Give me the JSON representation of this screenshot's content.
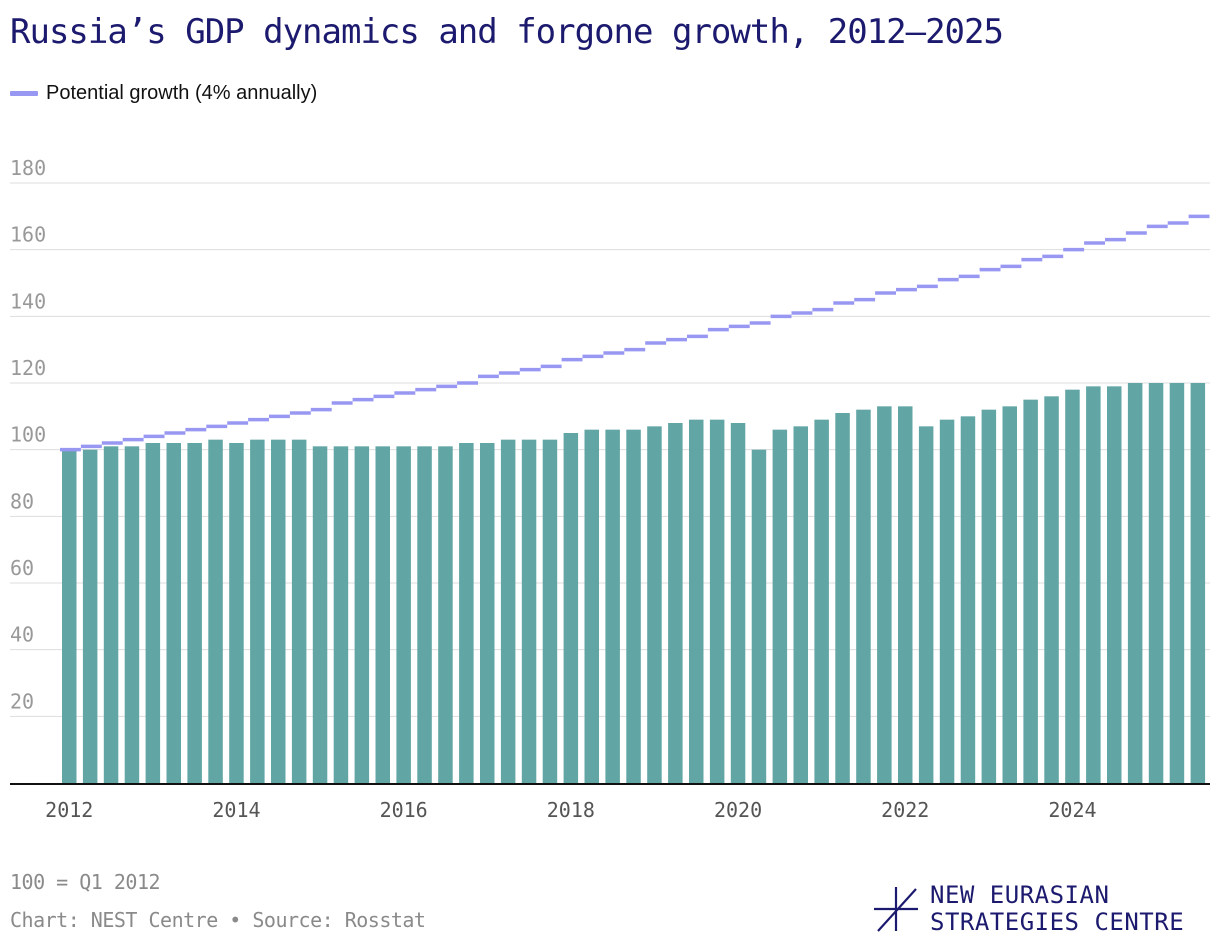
{
  "title": "Russia’s GDP dynamics and forgone growth, 2012–2025",
  "legend": {
    "potential_label": "Potential growth (4% annually)"
  },
  "footnotes": {
    "base": "100 = Q1 2012",
    "source": "Chart: NEST Centre • Source: Rosstat"
  },
  "logo": {
    "line1": "NEW EURASIAN",
    "line2": "STRATEGIES CENTRE"
  },
  "colors": {
    "bar": "#61a5a5",
    "potential": "#9898f2",
    "title": "#1c1a6e",
    "grid": "#dddddd",
    "axis": "#111111",
    "tick": "#999999"
  },
  "chart_data": {
    "type": "bar",
    "title": "Russia’s GDP dynamics and forgone growth, 2012–2025",
    "unit_note": "100 = Q1 2012",
    "xlabel": "",
    "ylabel": "",
    "ylim": [
      0,
      180
    ],
    "y_ticks": [
      20,
      40,
      60,
      80,
      100,
      120,
      140,
      160,
      180
    ],
    "x_tick_labels": [
      "2012",
      "2014",
      "2016",
      "2018",
      "2020",
      "2022",
      "2024"
    ],
    "categories": [
      "Q1 2012",
      "Q2 2012",
      "Q3 2012",
      "Q4 2012",
      "Q1 2013",
      "Q2 2013",
      "Q3 2013",
      "Q4 2013",
      "Q1 2014",
      "Q2 2014",
      "Q3 2014",
      "Q4 2014",
      "Q1 2015",
      "Q2 2015",
      "Q3 2015",
      "Q4 2015",
      "Q1 2016",
      "Q2 2016",
      "Q3 2016",
      "Q4 2016",
      "Q1 2017",
      "Q2 2017",
      "Q3 2017",
      "Q4 2017",
      "Q1 2018",
      "Q2 2018",
      "Q3 2018",
      "Q4 2018",
      "Q1 2019",
      "Q2 2019",
      "Q3 2019",
      "Q4 2019",
      "Q1 2020",
      "Q2 2020",
      "Q3 2020",
      "Q4 2020",
      "Q1 2021",
      "Q2 2021",
      "Q3 2021",
      "Q4 2021",
      "Q1 2022",
      "Q2 2022",
      "Q3 2022",
      "Q4 2022",
      "Q1 2023",
      "Q2 2023",
      "Q3 2023",
      "Q4 2023",
      "Q1 2024",
      "Q2 2024",
      "Q3 2024",
      "Q4 2024",
      "Q1 2025",
      "Q2 2025",
      "Q3 2025"
    ],
    "series": [
      {
        "name": "GDP (100 = Q1 2012)",
        "kind": "bar",
        "values": [
          100,
          100,
          101,
          101,
          102,
          102,
          102,
          103,
          102,
          103,
          103,
          103,
          101,
          101,
          101,
          101,
          101,
          101,
          101,
          102,
          102,
          103,
          103,
          103,
          105,
          106,
          106,
          106,
          107,
          108,
          109,
          109,
          108,
          100,
          106,
          107,
          109,
          111,
          112,
          113,
          113,
          107,
          109,
          110,
          112,
          113,
          115,
          116,
          118,
          119,
          119,
          120,
          120,
          120,
          120
        ]
      },
      {
        "name": "Potential growth (4% annually)",
        "kind": "step",
        "values": [
          100,
          101,
          102,
          103,
          104,
          105,
          106,
          107,
          108,
          109,
          110,
          111,
          112,
          114,
          115,
          116,
          117,
          118,
          119,
          120,
          122,
          123,
          124,
          125,
          127,
          128,
          129,
          130,
          132,
          133,
          134,
          136,
          137,
          138,
          140,
          141,
          142,
          144,
          145,
          147,
          148,
          149,
          151,
          152,
          154,
          155,
          157,
          158,
          160,
          162,
          163,
          165,
          167,
          168,
          170
        ]
      }
    ]
  }
}
